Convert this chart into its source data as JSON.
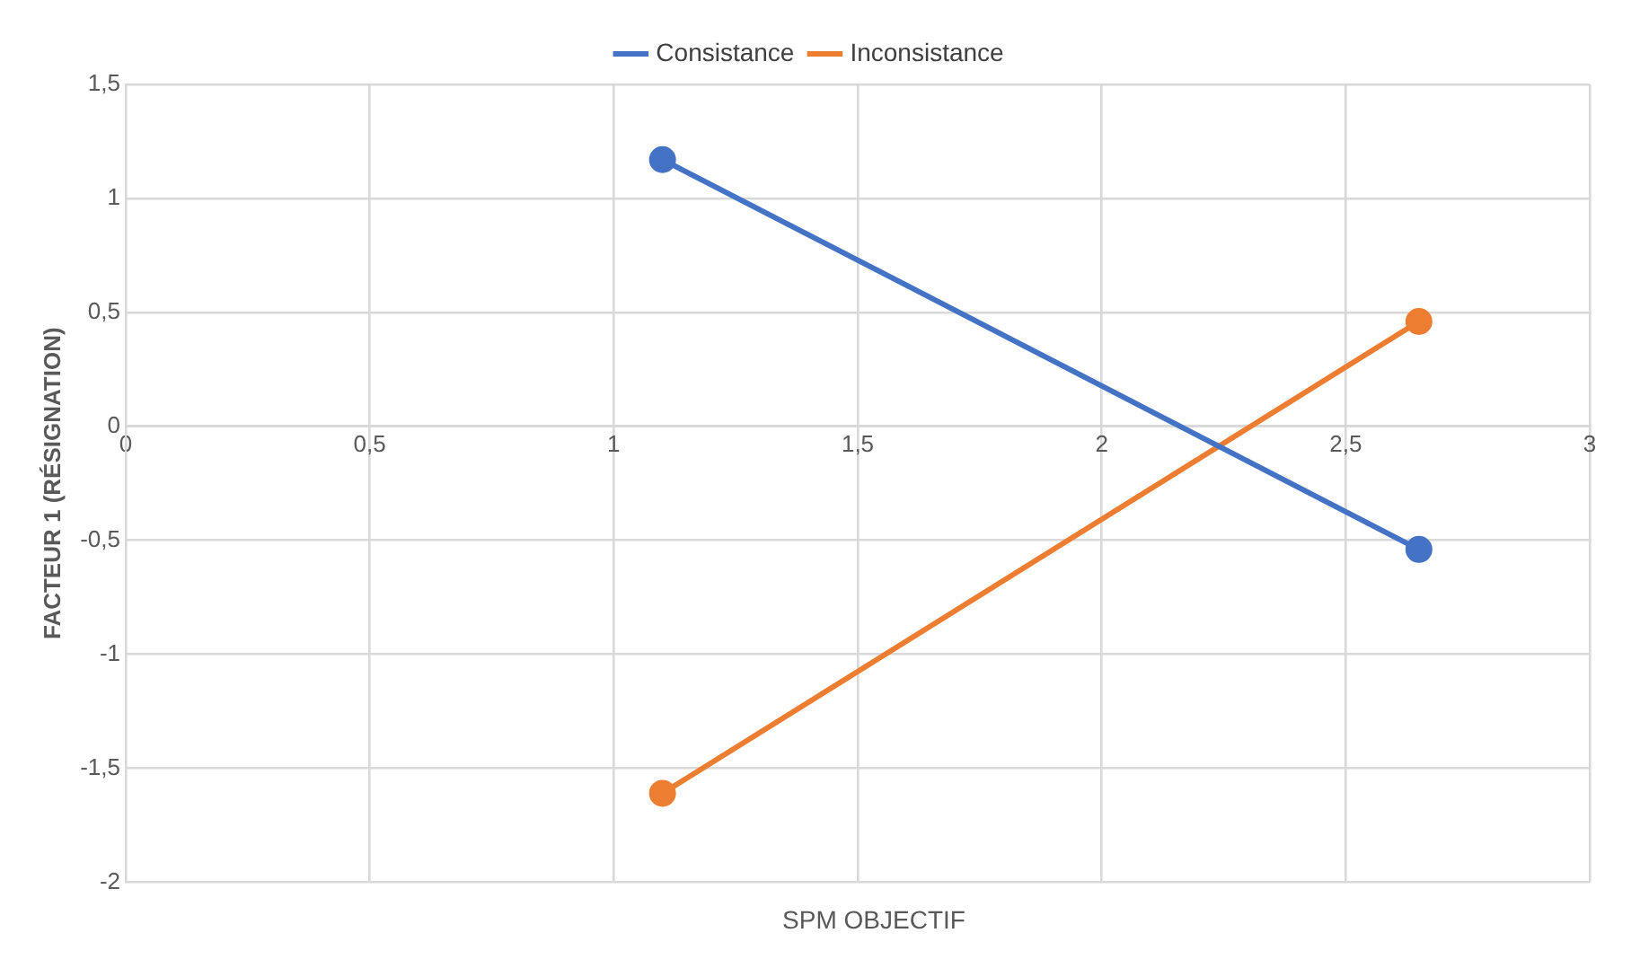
{
  "chart_data": {
    "type": "line",
    "xlabel": "SPM OBJECTIF",
    "ylabel": "FACTEUR 1 (RÉSIGNATION)",
    "series": [
      {
        "name": "Consistance",
        "color": "#4472c4",
        "values": [
          1.17,
          -0.54
        ]
      },
      {
        "name": "Inconsistance",
        "color": "#ed7d31",
        "values": [
          -1.61,
          0.46
        ]
      }
    ],
    "x": [
      1.1,
      2.65
    ],
    "xlim": [
      0,
      3
    ],
    "xticks": [
      0,
      {
        "value": 0.5,
        "label": "0,5"
      },
      1,
      {
        "value": 1.5,
        "label": "1,5"
      },
      2,
      {
        "value": 2.5,
        "label": "2,5"
      },
      3
    ],
    "ylim": [
      -2,
      1.5
    ],
    "yticks": [
      -2,
      {
        "value": -1.5,
        "label": "-1,5"
      },
      -1,
      {
        "value": -0.5,
        "label": "-0,5"
      },
      0,
      {
        "value": 0.5,
        "label": "0,5"
      },
      1,
      {
        "value": 1.5,
        "label": "1,5"
      }
    ],
    "grid": true,
    "legend": "top",
    "marker": "circle",
    "line_style": "solid"
  }
}
